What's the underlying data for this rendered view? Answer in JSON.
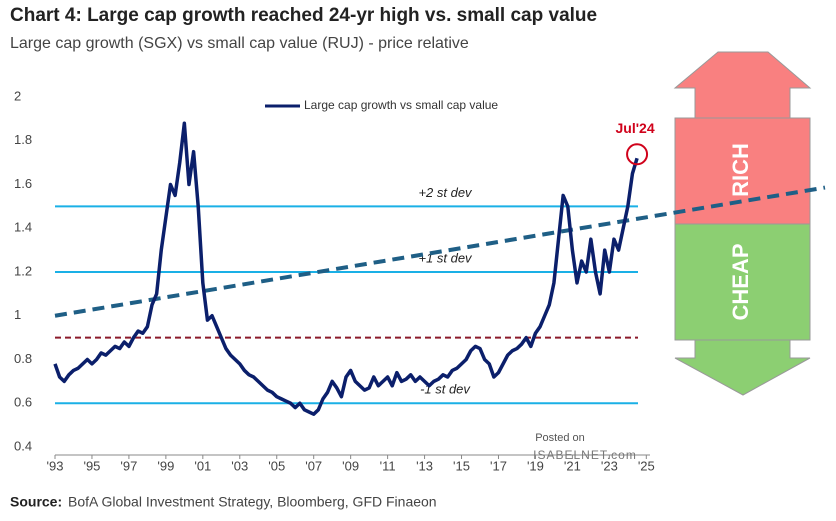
{
  "chart_data": {
    "type": "line",
    "title": "Chart 4: Large cap growth reached 24-yr high vs. small cap value",
    "subtitle": "Large cap growth (SGX) vs small cap value (RUJ) - price relative",
    "source_label": "Source:",
    "source": "BofA Global Investment Strategy, Bloomberg, GFD Finaeon",
    "watermark": [
      "Posted on",
      "ISABELNET.com"
    ],
    "legend_position": "top",
    "series": [
      {
        "name": "Large cap growth vs small cap value",
        "color": "#0b1f6b",
        "x": [
          1993,
          1993.25,
          1993.5,
          1993.75,
          1994,
          1994.25,
          1994.5,
          1994.75,
          1995,
          1995.25,
          1995.5,
          1995.75,
          1996,
          1996.25,
          1996.5,
          1996.75,
          1997,
          1997.25,
          1997.5,
          1997.75,
          1998,
          1998.25,
          1998.5,
          1998.75,
          1999,
          1999.25,
          1999.5,
          1999.75,
          2000,
          2000.25,
          2000.5,
          2000.75,
          2001,
          2001.25,
          2001.5,
          2001.75,
          2002,
          2002.25,
          2002.5,
          2002.75,
          2003,
          2003.25,
          2003.5,
          2003.75,
          2004,
          2004.25,
          2004.5,
          2004.75,
          2005,
          2005.25,
          2005.5,
          2005.75,
          2006,
          2006.25,
          2006.5,
          2006.75,
          2007,
          2007.25,
          2007.5,
          2007.75,
          2008,
          2008.25,
          2008.5,
          2008.75,
          2009,
          2009.25,
          2009.5,
          2009.75,
          2010,
          2010.25,
          2010.5,
          2010.75,
          2011,
          2011.25,
          2011.5,
          2011.75,
          2012,
          2012.25,
          2012.5,
          2012.75,
          2013,
          2013.25,
          2013.5,
          2013.75,
          2014,
          2014.25,
          2014.5,
          2014.75,
          2015,
          2015.25,
          2015.5,
          2015.75,
          2016,
          2016.25,
          2016.5,
          2016.75,
          2017,
          2017.25,
          2017.5,
          2017.75,
          2018,
          2018.25,
          2018.5,
          2018.75,
          2019,
          2019.25,
          2019.5,
          2019.75,
          2020,
          2020.25,
          2020.5,
          2020.75,
          2021,
          2021.25,
          2021.5,
          2021.75,
          2022,
          2022.25,
          2022.5,
          2022.75,
          2023,
          2023.25,
          2023.5,
          2023.75,
          2024,
          2024.25,
          2024.5
        ],
        "values": [
          0.78,
          0.72,
          0.7,
          0.73,
          0.75,
          0.76,
          0.78,
          0.8,
          0.78,
          0.8,
          0.83,
          0.82,
          0.84,
          0.86,
          0.85,
          0.88,
          0.86,
          0.9,
          0.93,
          0.92,
          0.95,
          1.05,
          1.1,
          1.3,
          1.45,
          1.6,
          1.55,
          1.7,
          1.88,
          1.6,
          1.75,
          1.5,
          1.15,
          0.98,
          1.0,
          0.95,
          0.9,
          0.85,
          0.82,
          0.8,
          0.78,
          0.75,
          0.73,
          0.72,
          0.7,
          0.68,
          0.66,
          0.65,
          0.63,
          0.62,
          0.61,
          0.6,
          0.58,
          0.6,
          0.57,
          0.56,
          0.55,
          0.57,
          0.62,
          0.65,
          0.7,
          0.67,
          0.63,
          0.72,
          0.75,
          0.7,
          0.68,
          0.66,
          0.67,
          0.72,
          0.68,
          0.7,
          0.72,
          0.68,
          0.74,
          0.7,
          0.71,
          0.73,
          0.7,
          0.72,
          0.7,
          0.68,
          0.7,
          0.71,
          0.73,
          0.72,
          0.75,
          0.76,
          0.78,
          0.8,
          0.84,
          0.86,
          0.85,
          0.8,
          0.78,
          0.72,
          0.74,
          0.78,
          0.82,
          0.84,
          0.85,
          0.87,
          0.9,
          0.86,
          0.92,
          0.95,
          1.0,
          1.05,
          1.15,
          1.35,
          1.55,
          1.5,
          1.3,
          1.15,
          1.25,
          1.2,
          1.35,
          1.2,
          1.1,
          1.3,
          1.2,
          1.35,
          1.3,
          1.4,
          1.5,
          1.65,
          1.72
        ]
      }
    ],
    "reference_lines": [
      {
        "value": 1.5,
        "label": "+2 st dev",
        "color": "#1ab0e6",
        "style": "solid"
      },
      {
        "value": 1.2,
        "label": "+1 st dev",
        "color": "#1ab0e6",
        "style": "solid"
      },
      {
        "value": 0.9,
        "color": "#8b1a2b",
        "style": "dashed"
      },
      {
        "value": 0.6,
        "label": "-1 st dev",
        "color": "#1ab0e6",
        "style": "solid"
      }
    ],
    "trend_line": {
      "x": [
        1993,
        2025
      ],
      "values": [
        1.0,
        1.45
      ],
      "color": "#1f5f86"
    },
    "highlight": {
      "label": "Jul'24",
      "x": 2024.5,
      "value": 1.72,
      "color": "#d0021b"
    },
    "zones": [
      {
        "label": "RICH",
        "color": "#f98080"
      },
      {
        "label": "CHEAP",
        "color": "#8ccf72"
      }
    ],
    "xlim": [
      1993,
      2025.2
    ],
    "ylim": [
      0.4,
      2
    ],
    "xticks": [
      {
        "value": 1993,
        "label": "'93"
      },
      {
        "value": 1995,
        "label": "'95"
      },
      {
        "value": 1997,
        "label": "'97"
      },
      {
        "value": 1999,
        "label": "'99"
      },
      {
        "value": 2001,
        "label": "'01"
      },
      {
        "value": 2003,
        "label": "'03"
      },
      {
        "value": 2005,
        "label": "'05"
      },
      {
        "value": 2007,
        "label": "'07"
      },
      {
        "value": 2009,
        "label": "'09"
      },
      {
        "value": 2011,
        "label": "'11"
      },
      {
        "value": 2013,
        "label": "'13"
      },
      {
        "value": 2015,
        "label": "'15"
      },
      {
        "value": 2017,
        "label": "'17"
      },
      {
        "value": 2019,
        "label": "'19"
      },
      {
        "value": 2021,
        "label": "'21"
      },
      {
        "value": 2023,
        "label": "'23"
      },
      {
        "value": 2025,
        "label": "'25"
      }
    ],
    "yticks": [
      0.4,
      0.6,
      0.8,
      1,
      1.2,
      1.4,
      1.6,
      1.8,
      2
    ]
  }
}
